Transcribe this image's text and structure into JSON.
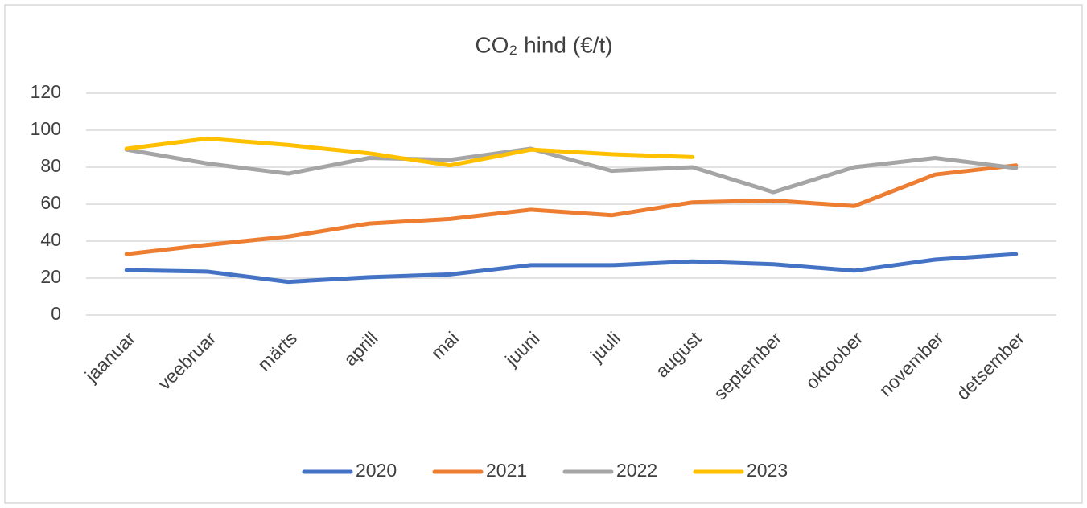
{
  "chart_data": {
    "type": "line",
    "title": "CO₂ hind (€/t)",
    "categories": [
      "jaanuar",
      "veebruar",
      "märts",
      "aprill",
      "mai",
      "juuni",
      "juuli",
      "august",
      "september",
      "oktoober",
      "november",
      "detsember"
    ],
    "series": [
      {
        "name": "2020",
        "color": "#4472c4",
        "values": [
          24.3,
          23.5,
          18,
          20.5,
          22,
          27,
          27,
          29,
          27.5,
          24,
          30,
          33
        ]
      },
      {
        "name": "2021",
        "color": "#ed7d31",
        "values": [
          33,
          38,
          42.5,
          49.5,
          52,
          57,
          54,
          61,
          62,
          59,
          76,
          81
        ]
      },
      {
        "name": "2022",
        "color": "#a5a5a5",
        "values": [
          89.5,
          82,
          76.5,
          85,
          84,
          90,
          78,
          80,
          66.5,
          80,
          85,
          79.5
        ]
      },
      {
        "name": "2023",
        "color": "#ffc000",
        "values": [
          90,
          95.5,
          92,
          87.5,
          81,
          89.5,
          87,
          85.5,
          null,
          null,
          null,
          null
        ]
      }
    ],
    "ylim": [
      0,
      120
    ],
    "yticks": [
      0,
      20,
      40,
      60,
      80,
      100,
      120
    ],
    "grid": true,
    "legend": "bottom"
  }
}
